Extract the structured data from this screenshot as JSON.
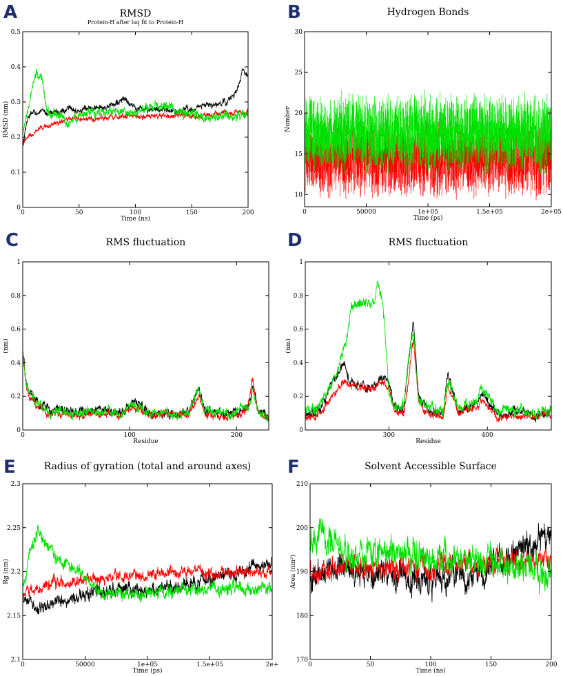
{
  "figure": {
    "name": "md-analysis-figure"
  },
  "colors": {
    "black": "#000000",
    "red": "#ff0000",
    "green": "#00e000"
  },
  "chart_data": [
    {
      "id": "A",
      "type": "line",
      "panel_label": "A",
      "title": "RMSD",
      "subtitle": "Protein-H after lsq fit to Protein-H",
      "xlabel": "Time (ns)",
      "ylabel": "RMSD (nm)",
      "xlim": [
        0,
        200
      ],
      "ylim": [
        0,
        0.5
      ],
      "xticks": [
        0,
        50,
        100,
        150,
        200
      ],
      "xtick_labels": [
        "0",
        "50",
        "100",
        "150",
        "200"
      ],
      "yticks": [
        0,
        0.1,
        0.2,
        0.3,
        0.4,
        0.5
      ],
      "ytick_labels": [
        "0",
        "0.1",
        "0.2",
        "0.3",
        "0.4",
        "0.5"
      ],
      "series": [
        {
          "name": "black",
          "color": "#000000",
          "noise": 0.008,
          "x": [
            0,
            2,
            5,
            10,
            20,
            30,
            40,
            60,
            80,
            90,
            100,
            120,
            140,
            160,
            170,
            180,
            185,
            190,
            195,
            200
          ],
          "y": [
            0.17,
            0.21,
            0.26,
            0.27,
            0.27,
            0.27,
            0.28,
            0.28,
            0.29,
            0.31,
            0.28,
            0.28,
            0.27,
            0.29,
            0.29,
            0.3,
            0.31,
            0.33,
            0.39,
            0.37
          ]
        },
        {
          "name": "red",
          "color": "#ff0000",
          "noise": 0.007,
          "x": [
            0,
            5,
            10,
            20,
            30,
            40,
            60,
            80,
            100,
            120,
            140,
            160,
            180,
            200
          ],
          "y": [
            0.18,
            0.2,
            0.21,
            0.23,
            0.24,
            0.25,
            0.25,
            0.26,
            0.26,
            0.26,
            0.26,
            0.26,
            0.27,
            0.27
          ]
        },
        {
          "name": "green",
          "color": "#00e000",
          "noise": 0.012,
          "x": [
            0,
            3,
            8,
            12,
            18,
            20,
            25,
            30,
            40,
            50,
            60,
            80,
            100,
            120,
            130,
            140,
            160,
            180,
            200
          ],
          "y": [
            0.2,
            0.25,
            0.33,
            0.38,
            0.36,
            0.3,
            0.26,
            0.27,
            0.24,
            0.26,
            0.27,
            0.27,
            0.27,
            0.29,
            0.29,
            0.27,
            0.26,
            0.26,
            0.26
          ]
        }
      ]
    },
    {
      "id": "B",
      "type": "line",
      "panel_label": "B",
      "title": "Hydrogen Bonds",
      "subtitle": "",
      "xlabel": "Time (ps)",
      "ylabel": "Number",
      "xlim": [
        0,
        200000
      ],
      "ylim": [
        8.5,
        30
      ],
      "xticks": [
        0,
        50000,
        100000,
        150000,
        200000
      ],
      "xtick_labels": [
        "0",
        "50000",
        "1e+05",
        "1.5e+05",
        "2e+05"
      ],
      "yticks": [
        10,
        15,
        20,
        25,
        30
      ],
      "ytick_labels": [
        "10",
        "15",
        "20",
        "25",
        "30"
      ],
      "series": [
        {
          "name": "red",
          "color": "#ff0000",
          "mode": "bars",
          "min": 11,
          "max": 17,
          "mean": 14.5
        },
        {
          "name": "green",
          "color": "#00e000",
          "mode": "bars",
          "min": 14,
          "max": 21,
          "mean": 17.5
        }
      ]
    },
    {
      "id": "C",
      "type": "line",
      "panel_label": "C",
      "title": "RMS fluctuation",
      "subtitle": "",
      "xlabel": "Residue",
      "ylabel": "(nm)",
      "xlim": [
        0,
        230
      ],
      "ylim": [
        0,
        1
      ],
      "xticks": [
        0,
        100,
        200
      ],
      "xtick_labels": [
        "0",
        "100",
        "200"
      ],
      "yticks": [
        0,
        0.2,
        0.4,
        0.6,
        0.8,
        1
      ],
      "ytick_labels": [
        "0",
        "0.2",
        "0.4",
        "0.6",
        "0.8",
        "1"
      ],
      "series": [
        {
          "name": "black",
          "color": "#000000",
          "noise": 0.025,
          "x": [
            0,
            3,
            6,
            10,
            15,
            25,
            35,
            50,
            70,
            90,
            105,
            120,
            140,
            155,
            160,
            165,
            170,
            190,
            200,
            210,
            215,
            220,
            230
          ],
          "y": [
            0.48,
            0.3,
            0.22,
            0.2,
            0.15,
            0.12,
            0.13,
            0.1,
            0.12,
            0.1,
            0.17,
            0.1,
            0.1,
            0.1,
            0.18,
            0.26,
            0.12,
            0.09,
            0.1,
            0.14,
            0.25,
            0.12,
            0.08
          ]
        },
        {
          "name": "red",
          "color": "#ff0000",
          "noise": 0.02,
          "x": [
            0,
            3,
            6,
            10,
            15,
            25,
            35,
            50,
            70,
            90,
            105,
            120,
            140,
            155,
            160,
            165,
            170,
            190,
            200,
            210,
            215,
            220,
            230
          ],
          "y": [
            0.46,
            0.28,
            0.2,
            0.17,
            0.13,
            0.1,
            0.1,
            0.09,
            0.1,
            0.09,
            0.13,
            0.09,
            0.09,
            0.09,
            0.15,
            0.2,
            0.1,
            0.08,
            0.09,
            0.12,
            0.3,
            0.1,
            0.07
          ]
        },
        {
          "name": "green",
          "color": "#00e000",
          "noise": 0.025,
          "x": [
            0,
            3,
            6,
            10,
            15,
            25,
            35,
            50,
            70,
            90,
            105,
            120,
            140,
            155,
            160,
            165,
            170,
            190,
            200,
            210,
            215,
            220,
            230
          ],
          "y": [
            0.47,
            0.29,
            0.21,
            0.18,
            0.14,
            0.11,
            0.12,
            0.1,
            0.11,
            0.1,
            0.15,
            0.1,
            0.1,
            0.1,
            0.17,
            0.25,
            0.11,
            0.09,
            0.1,
            0.13,
            0.22,
            0.11,
            0.08
          ]
        }
      ]
    },
    {
      "id": "D",
      "type": "line",
      "panel_label": "D",
      "title": "RMS fluctuation",
      "subtitle": "",
      "xlabel": "Residue",
      "ylabel": "(nm)",
      "xlim": [
        215,
        465
      ],
      "ylim": [
        0,
        1
      ],
      "xticks": [
        300,
        400
      ],
      "xtick_labels": [
        "300",
        "400"
      ],
      "yticks": [
        0,
        0.2,
        0.4,
        0.6,
        0.8,
        1
      ],
      "ytick_labels": [
        "0",
        "0.2",
        "0.4",
        "0.6",
        "0.8",
        "1"
      ],
      "series": [
        {
          "name": "black",
          "color": "#000000",
          "noise": 0.025,
          "x": [
            215,
            230,
            245,
            255,
            260,
            270,
            285,
            292,
            300,
            305,
            315,
            320,
            325,
            330,
            340,
            355,
            360,
            370,
            390,
            395,
            410,
            430,
            450,
            465
          ],
          "y": [
            0.08,
            0.12,
            0.3,
            0.4,
            0.3,
            0.27,
            0.25,
            0.32,
            0.3,
            0.15,
            0.12,
            0.4,
            0.66,
            0.2,
            0.12,
            0.1,
            0.34,
            0.12,
            0.15,
            0.22,
            0.1,
            0.1,
            0.09,
            0.1
          ]
        },
        {
          "name": "red",
          "color": "#ff0000",
          "noise": 0.02,
          "x": [
            215,
            230,
            245,
            255,
            260,
            270,
            285,
            292,
            300,
            305,
            315,
            320,
            325,
            330,
            340,
            355,
            360,
            370,
            390,
            395,
            410,
            430,
            450,
            465
          ],
          "y": [
            0.07,
            0.1,
            0.22,
            0.3,
            0.27,
            0.25,
            0.24,
            0.3,
            0.26,
            0.12,
            0.1,
            0.3,
            0.55,
            0.17,
            0.1,
            0.08,
            0.28,
            0.1,
            0.13,
            0.18,
            0.08,
            0.08,
            0.08,
            0.09
          ]
        },
        {
          "name": "green",
          "color": "#00e000",
          "noise": 0.03,
          "x": [
            215,
            230,
            245,
            252,
            258,
            262,
            275,
            285,
            288,
            292,
            296,
            300,
            305,
            315,
            320,
            325,
            330,
            340,
            355,
            360,
            370,
            390,
            395,
            410,
            430,
            450,
            465
          ],
          "y": [
            0.1,
            0.14,
            0.32,
            0.45,
            0.55,
            0.74,
            0.76,
            0.76,
            0.88,
            0.8,
            0.6,
            0.22,
            0.15,
            0.14,
            0.45,
            0.58,
            0.2,
            0.13,
            0.11,
            0.3,
            0.13,
            0.16,
            0.24,
            0.12,
            0.12,
            0.1,
            0.12
          ]
        }
      ]
    },
    {
      "id": "E",
      "type": "line",
      "panel_label": "E",
      "title": "Radius of gyration (total and around axes)",
      "subtitle": "",
      "xlabel": "Time (ps)",
      "ylabel": "Rg (nm)",
      "xlim": [
        0,
        200000
      ],
      "ylim": [
        2.1,
        2.3
      ],
      "xticks": [
        0,
        50000,
        100000,
        150000,
        200000
      ],
      "xtick_labels": [
        "0",
        "50000",
        "1e+05",
        "1.5e+05",
        "2e+"
      ],
      "yticks": [
        2.1,
        2.15,
        2.2,
        2.25,
        2.3
      ],
      "ytick_labels": [
        "2.1",
        "2.15",
        "2.2",
        "2.25",
        "2.3"
      ],
      "series": [
        {
          "name": "black",
          "color": "#000000",
          "noise": 0.007,
          "x": [
            0,
            10000,
            20000,
            40000,
            60000,
            80000,
            100000,
            120000,
            150000,
            170000,
            185000,
            200000
          ],
          "y": [
            2.17,
            2.16,
            2.16,
            2.17,
            2.175,
            2.18,
            2.18,
            2.185,
            2.19,
            2.2,
            2.205,
            2.21
          ]
        },
        {
          "name": "red",
          "color": "#ff0000",
          "noise": 0.006,
          "x": [
            0,
            20000,
            50000,
            80000,
            100000,
            130000,
            160000,
            200000
          ],
          "y": [
            2.175,
            2.185,
            2.19,
            2.195,
            2.195,
            2.2,
            2.2,
            2.2
          ]
        },
        {
          "name": "green",
          "color": "#00e000",
          "noise": 0.007,
          "x": [
            0,
            5000,
            12000,
            20000,
            30000,
            45000,
            60000,
            80000,
            100000,
            130000,
            160000,
            200000
          ],
          "y": [
            2.18,
            2.22,
            2.245,
            2.23,
            2.21,
            2.2,
            2.18,
            2.175,
            2.175,
            2.18,
            2.18,
            2.18
          ]
        }
      ]
    },
    {
      "id": "F",
      "type": "line",
      "panel_label": "F",
      "title": "Solvent Accessible Surface",
      "subtitle": "",
      "xlabel": "Time (ns)",
      "ylabel": "Area (nm²)",
      "xlim": [
        0,
        200
      ],
      "ylim": [
        170,
        210
      ],
      "xticks": [
        0,
        50,
        100,
        150,
        200
      ],
      "xtick_labels": [
        "0",
        "50",
        "100",
        "150",
        "200"
      ],
      "yticks": [
        170,
        180,
        190,
        200,
        210
      ],
      "ytick_labels": [
        "170",
        "180",
        "190",
        "200",
        "210"
      ],
      "series": [
        {
          "name": "black",
          "color": "#000000",
          "noise": 3.0,
          "x": [
            0,
            20,
            40,
            60,
            80,
            100,
            120,
            140,
            160,
            180,
            200
          ],
          "y": [
            188,
            192,
            189,
            190,
            188,
            187,
            189,
            190,
            193,
            196,
            198
          ]
        },
        {
          "name": "red",
          "color": "#ff0000",
          "noise": 2.4,
          "x": [
            0,
            50,
            100,
            150,
            200
          ],
          "y": [
            190,
            191,
            191,
            192,
            192
          ]
        },
        {
          "name": "green",
          "color": "#00e000",
          "noise": 3.2,
          "x": [
            0,
            10,
            30,
            60,
            90,
            120,
            150,
            170,
            200
          ],
          "y": [
            196,
            200,
            193,
            194,
            194,
            193,
            193,
            191,
            189
          ]
        }
      ]
    }
  ]
}
